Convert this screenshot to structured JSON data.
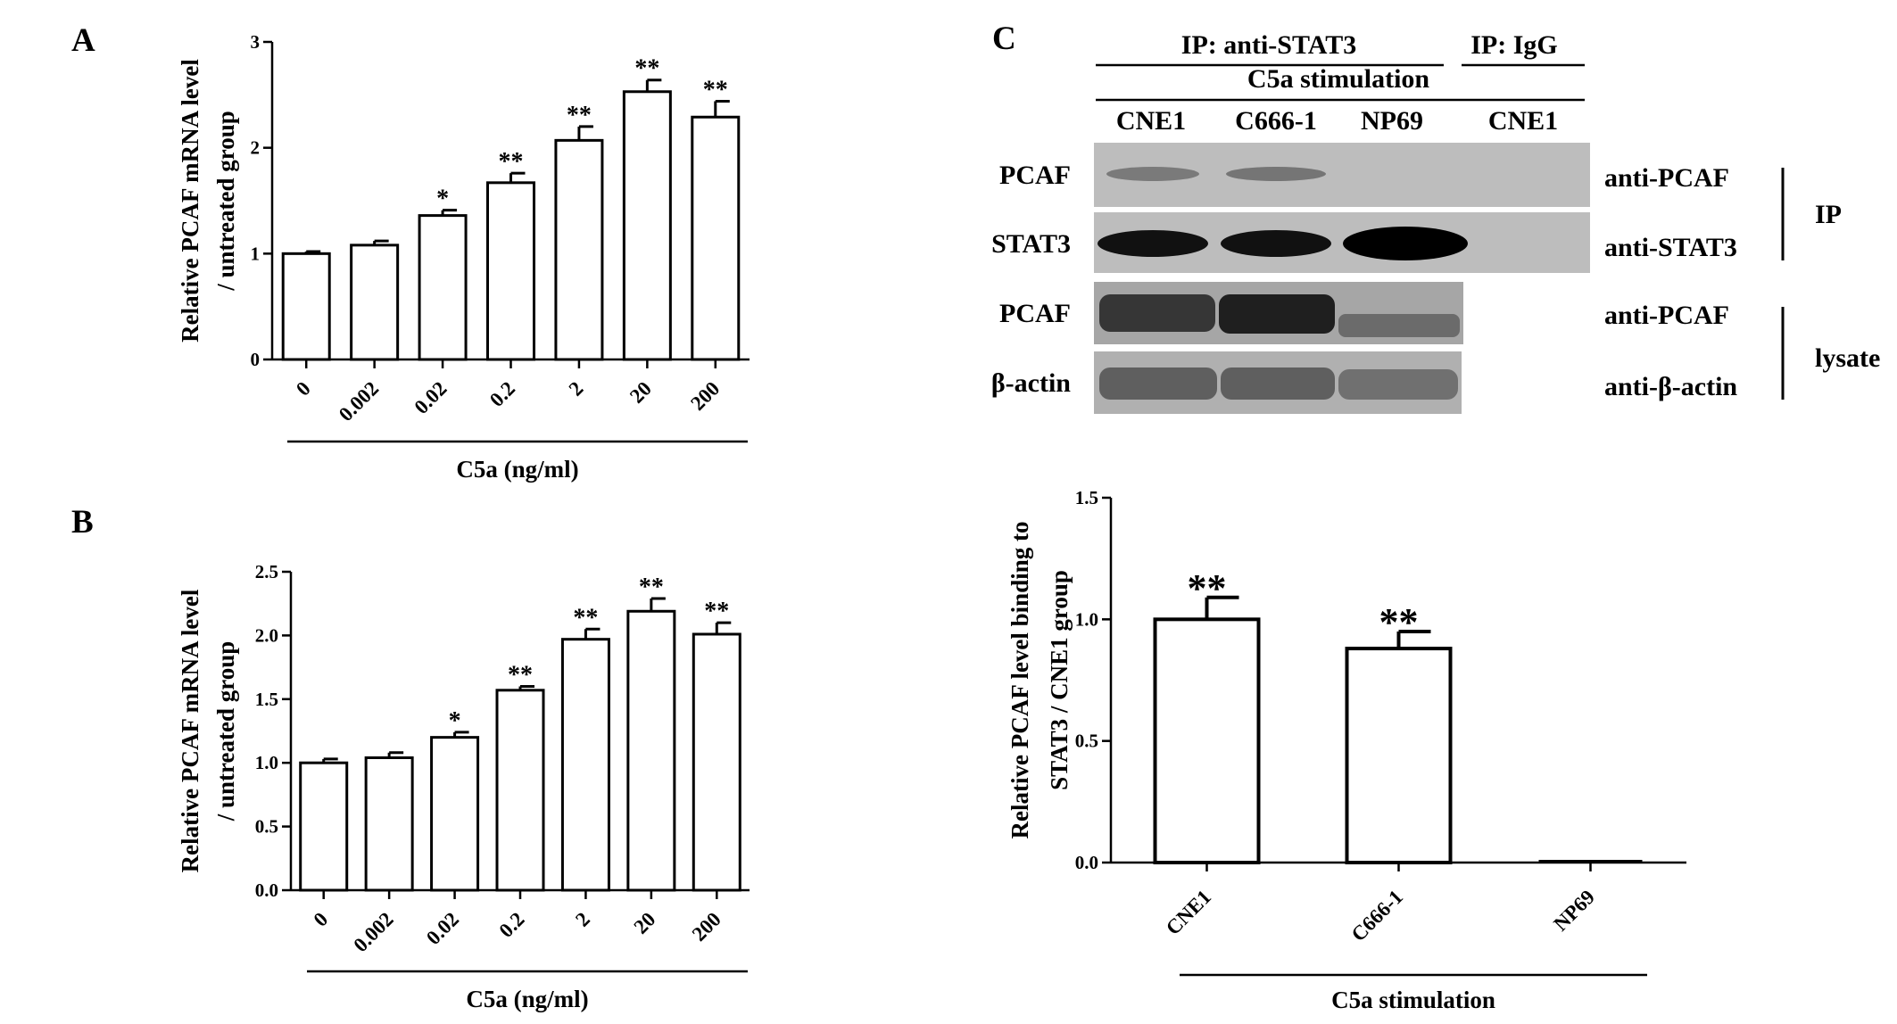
{
  "panels": {
    "A": {
      "label": "A"
    },
    "B": {
      "label": "B"
    },
    "C": {
      "label": "C"
    }
  },
  "chart_data": [
    {
      "id": "A",
      "type": "bar",
      "categories": [
        "0",
        "0.002",
        "0.02",
        "0.2",
        "2",
        "20",
        "200"
      ],
      "values": [
        1.0,
        1.08,
        1.36,
        1.67,
        2.07,
        2.53,
        2.29
      ],
      "errors": [
        0.02,
        0.04,
        0.05,
        0.09,
        0.13,
        0.11,
        0.15
      ],
      "significance": [
        "",
        "",
        "*",
        "**",
        "**",
        "**",
        "**"
      ],
      "xlabel": "C5a (ng/ml)",
      "ylabel": "Relative PCAF mRNA level / untreated group",
      "ylim": [
        0,
        3
      ],
      "yticks": [
        "0",
        "1",
        "2",
        "3"
      ],
      "grid": false
    },
    {
      "id": "B",
      "type": "bar",
      "categories": [
        "0",
        "0.002",
        "0.02",
        "0.2",
        "2",
        "20",
        "200"
      ],
      "values": [
        1.0,
        1.04,
        1.2,
        1.57,
        1.97,
        2.19,
        2.01
      ],
      "errors": [
        0.03,
        0.04,
        0.04,
        0.03,
        0.08,
        0.1,
        0.09
      ],
      "significance": [
        "",
        "",
        "*",
        "**",
        "**",
        "**",
        "**"
      ],
      "xlabel": "C5a (ng/ml)",
      "ylabel": "Relative PCAF mRNA level / untreated group",
      "ylim": [
        0,
        2.5
      ],
      "yticks": [
        "0.0",
        "0.5",
        "1.0",
        "1.5",
        "2.0",
        "2.5"
      ],
      "grid": false
    },
    {
      "id": "C",
      "type": "bar",
      "categories": [
        "CNE1",
        "C666-1",
        "NP69"
      ],
      "values": [
        1.0,
        0.88,
        0.0
      ],
      "errors": [
        0.09,
        0.07,
        0.0
      ],
      "significance": [
        "**",
        "**",
        ""
      ],
      "xlabel": "C5a stimulation",
      "ylabel": "Relative PCAF level binding to STAT3 / CNE1 group",
      "ylim": [
        0,
        1.5
      ],
      "yticks": [
        "0.0",
        "0.5",
        "1.0",
        "1.5"
      ],
      "grid": false
    }
  ],
  "blot": {
    "ip_stat3_header": "IP: anti-STAT3",
    "ip_igg_header": "IP: IgG",
    "stimulation_header": "C5a stimulation",
    "lanes": [
      "CNE1",
      "C666-1",
      "NP69",
      "CNE1"
    ],
    "rows": [
      {
        "label": "PCAF",
        "antibody": "anti-PCAF",
        "intensity": [
          0.35,
          0.4,
          0.0,
          0.0
        ]
      },
      {
        "label": "STAT3",
        "antibody": "anti-STAT3",
        "intensity": [
          0.85,
          0.85,
          0.95,
          0.0
        ]
      },
      {
        "label": "PCAF",
        "antibody": "anti-PCAF",
        "intensity": [
          0.8,
          0.85,
          0.4
        ]
      },
      {
        "label": "β-actin",
        "antibody": "anti-β-actin",
        "intensity": [
          0.7,
          0.7,
          0.65
        ]
      }
    ],
    "group_ip": "IP",
    "group_lysate": "lysate"
  }
}
